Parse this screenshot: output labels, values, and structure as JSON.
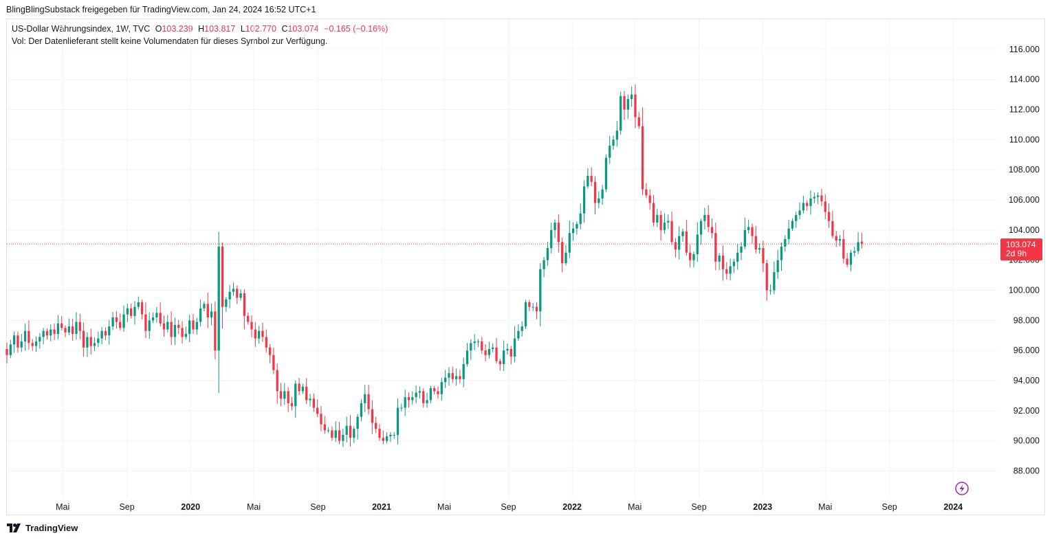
{
  "header": {
    "text": "BlingBlingSubstack freigegeben für TradingView.com, Jan 24, 2024 16:52 UTC+1"
  },
  "legend": {
    "symbol": "US-Dollar Währungsindex, 1W, TVC",
    "o_label": "O",
    "o": "103.239",
    "h_label": "H",
    "h": "103.817",
    "l_label": "L",
    "l": "102.770",
    "c_label": "C",
    "c": "103.074",
    "change": "−0.165 (−0.16%)",
    "volume_note": "Vol: Der Datenlieferant stellt keine Volumendaten für dieses Symbol zur Verfügung."
  },
  "price_label": {
    "value": "103.074",
    "countdown": "2d 9h"
  },
  "footer": {
    "brand": "TradingView"
  },
  "colors": {
    "up": "#089981",
    "down": "#f23645",
    "grid": "#f0f3fa",
    "text": "#131722",
    "lightning": "#9c27b0"
  },
  "icons": {
    "lightning": "lightning-icon",
    "logo": "tradingview-logo-icon"
  },
  "chart_data": {
    "type": "candlestick",
    "interval": "1W",
    "y_ticks": [
      "88.000",
      "90.000",
      "92.000",
      "94.000",
      "96.000",
      "98.000",
      "100.000",
      "102.000",
      "104.000",
      "106.000",
      "108.000",
      "110.000",
      "112.000",
      "114.000",
      "116.000"
    ],
    "ylim": [
      86.2,
      118.0
    ],
    "x_ticks": [
      {
        "label": "Mai",
        "date": "2019-05-01"
      },
      {
        "label": "Sep",
        "date": "2019-09-01"
      },
      {
        "label": "2020",
        "date": "2020-01-01",
        "bold": true
      },
      {
        "label": "Mai",
        "date": "2020-05-01"
      },
      {
        "label": "Sep",
        "date": "2020-09-01"
      },
      {
        "label": "2021",
        "date": "2021-01-01",
        "bold": true
      },
      {
        "label": "Mai",
        "date": "2021-05-01"
      },
      {
        "label": "Sep",
        "date": "2021-09-01"
      },
      {
        "label": "2022",
        "date": "2022-01-01",
        "bold": true
      },
      {
        "label": "Mai",
        "date": "2022-05-01"
      },
      {
        "label": "Sep",
        "date": "2022-09-01"
      },
      {
        "label": "2023",
        "date": "2023-01-01",
        "bold": true
      },
      {
        "label": "Mai",
        "date": "2023-05-01"
      },
      {
        "label": "Sep",
        "date": "2023-09-01"
      },
      {
        "label": "2024",
        "date": "2024-01-01",
        "bold": true
      }
    ],
    "last_price": 103.074,
    "x_range": [
      "2019-01-14",
      "2024-03-25"
    ],
    "candles_start": "2019-01-14",
    "closes": [
      95.7,
      96.4,
      97.0,
      96.2,
      96.6,
      97.3,
      96.5,
      96.3,
      96.6,
      96.9,
      97.3,
      97.0,
      97.4,
      97.1,
      97.8,
      97.5,
      97.2,
      97.6,
      97.1,
      97.9,
      97.3,
      96.2,
      96.9,
      96.3,
      96.5,
      96.8,
      97.3,
      97.0,
      97.6,
      98.2,
      97.9,
      97.5,
      98.4,
      98.8,
      98.3,
      98.9,
      99.2,
      98.4,
      97.3,
      98.0,
      98.2,
      98.5,
      97.8,
      97.4,
      97.9,
      96.9,
      97.7,
      97.5,
      96.9,
      97.1,
      98.0,
      97.4,
      97.9,
      98.8,
      99.1,
      98.2,
      98.6,
      96.0,
      102.9,
      98.9,
      99.4,
      99.9,
      100.1,
      99.5,
      99.8,
      98.3,
      97.9,
      97.4,
      96.8,
      97.3,
      96.9,
      96.2,
      95.7,
      94.7,
      93.3,
      92.8,
      93.3,
      92.5,
      92.3,
      93.8,
      93.3,
      93.6,
      92.7,
      92.8,
      92.2,
      91.8,
      91.1,
      90.7,
      90.7,
      90.2,
      90.7,
      90.0,
      90.4,
      91.0,
      90.2,
      90.8,
      91.6,
      92.5,
      93.1,
      92.1,
      91.2,
      90.8,
      90.2,
      90.0,
      90.3,
      90.4,
      90.4,
      92.2,
      92.2,
      92.9,
      92.7,
      92.9,
      93.2,
      93.3,
      92.5,
      92.7,
      93.5,
      93.3,
      93.1,
      93.9,
      94.2,
      94.5,
      94.1,
      94.3,
      94.1,
      95.1,
      96.0,
      96.5,
      96.6,
      96.6,
      96.0,
      95.7,
      96.1,
      96.2,
      95.3,
      95.1,
      96.0,
      96.1,
      95.6,
      96.8,
      97.3,
      97.6,
      99.2,
      98.9,
      98.9,
      98.6,
      101.4,
      102.0,
      102.8,
      104.0,
      104.5,
      103.2,
      101.8,
      102.5,
      103.8,
      104.1,
      104.4,
      105.1,
      106.9,
      107.6,
      107.2,
      105.8,
      106.1,
      106.7,
      108.8,
      109.6,
      110.0,
      110.6,
      112.9,
      112.0,
      112.7,
      113.0,
      111.5,
      110.9,
      106.7,
      106.3,
      105.8,
      104.5,
      105.0,
      104.0,
      104.5,
      104.6,
      103.2,
      102.7,
      103.6,
      103.9,
      102.5,
      102.0,
      102.4,
      103.7,
      104.6,
      105.0,
      104.2,
      103.8,
      101.9,
      102.3,
      101.4,
      101.1,
      101.6,
      101.9,
      102.5,
      102.9,
      104.0,
      104.2,
      103.6,
      102.7,
      102.8,
      101.8,
      100.0,
      100.0,
      101.2,
      102.0,
      102.9,
      103.4,
      104.1,
      104.6,
      105.0,
      105.3,
      105.8,
      105.6,
      106.1,
      106.2,
      106.3,
      105.9,
      105.2,
      104.6,
      103.6,
      103.3,
      103.4,
      102.1,
      101.7,
      102.5,
      102.6,
      103.2,
      103.1
    ]
  }
}
